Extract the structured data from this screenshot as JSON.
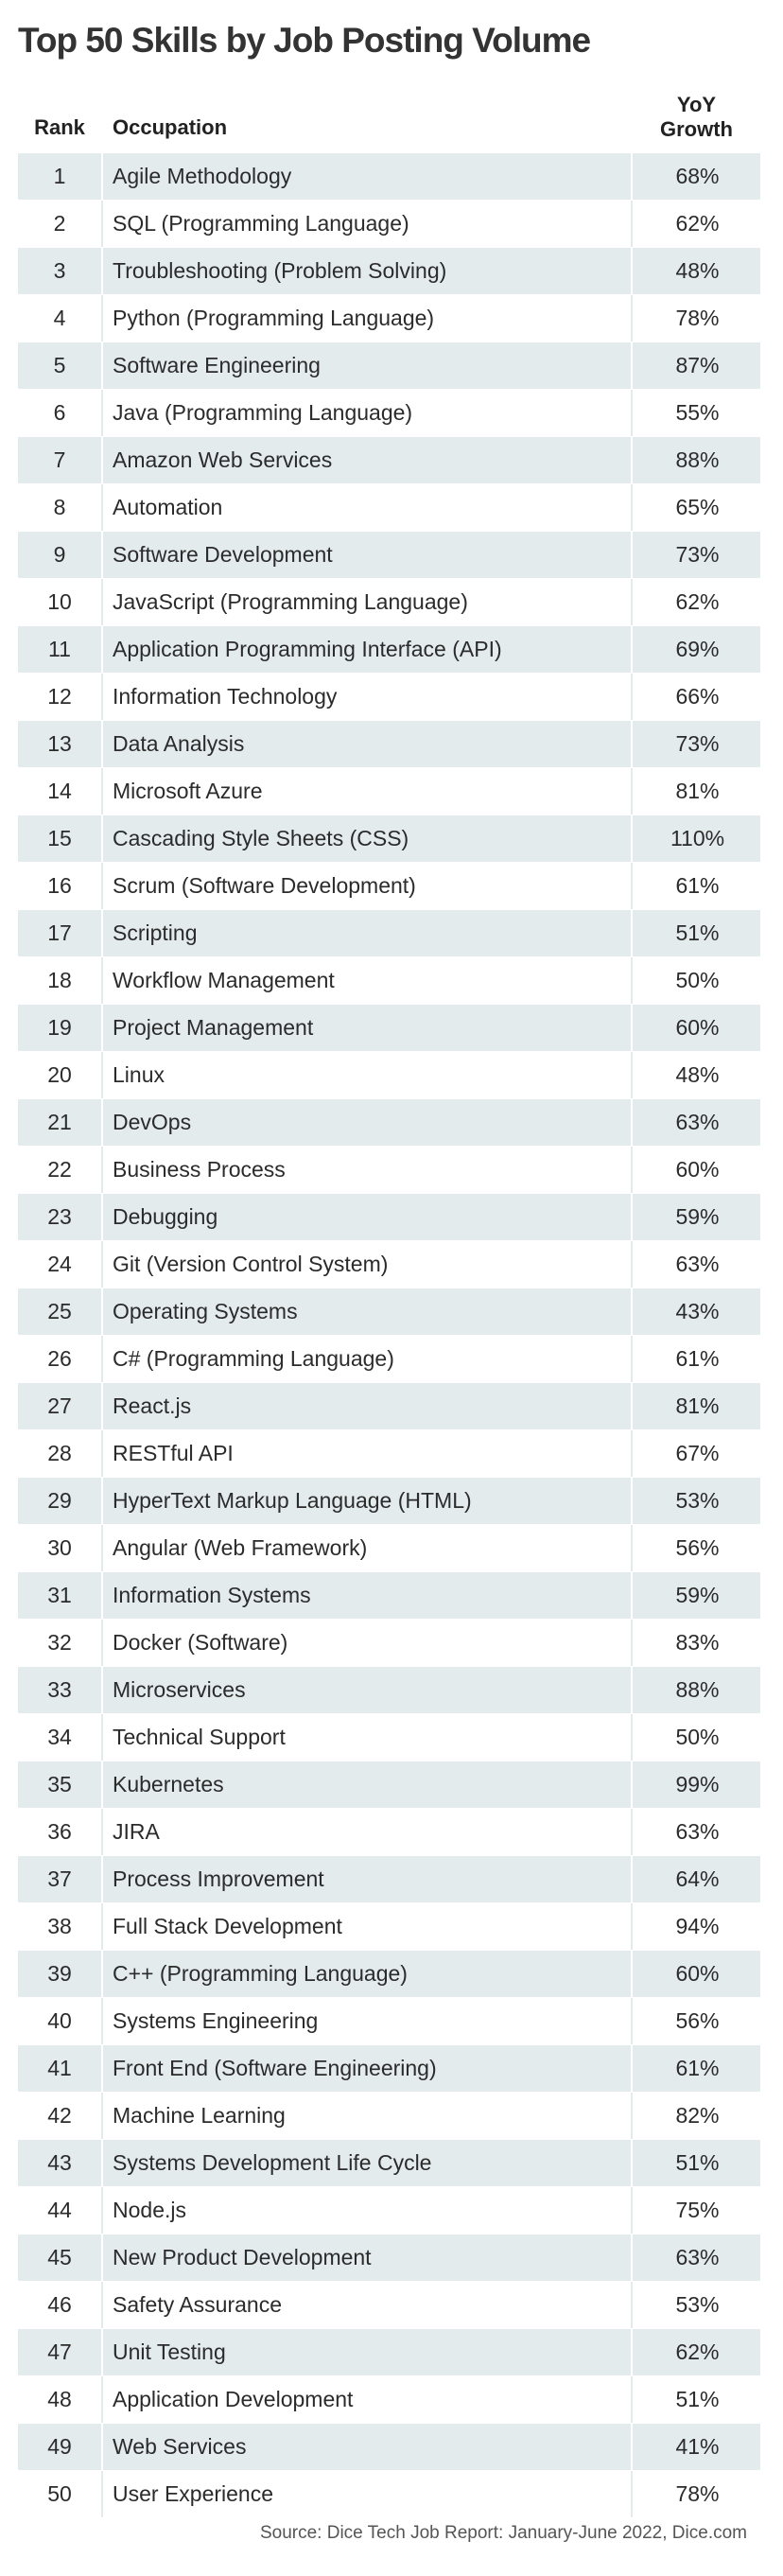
{
  "title": "Top 50 Skills by Job Posting Volume",
  "columns": {
    "rank": "Rank",
    "occupation": "Occupation",
    "growth_line1": "YoY",
    "growth_line2": "Growth"
  },
  "source": "Source: Dice Tech Job Report: January-June 2022, Dice.com",
  "colors": {
    "shaded_row": "#e4ebed",
    "title": "#333333"
  },
  "chart_data": {
    "type": "table",
    "title": "Top 50 Skills by Job Posting Volume",
    "columns": [
      "Rank",
      "Occupation",
      "YoY Growth"
    ],
    "rows": [
      {
        "rank": "1",
        "occupation": "Agile Methodology",
        "growth": "68%"
      },
      {
        "rank": "2",
        "occupation": "SQL (Programming Language)",
        "growth": "62%"
      },
      {
        "rank": "3",
        "occupation": "Troubleshooting (Problem Solving)",
        "growth": "48%"
      },
      {
        "rank": "4",
        "occupation": "Python (Programming Language)",
        "growth": "78%"
      },
      {
        "rank": "5",
        "occupation": "Software Engineering",
        "growth": "87%"
      },
      {
        "rank": "6",
        "occupation": "Java (Programming Language)",
        "growth": "55%"
      },
      {
        "rank": "7",
        "occupation": "Amazon Web Services",
        "growth": "88%"
      },
      {
        "rank": "8",
        "occupation": "Automation",
        "growth": "65%"
      },
      {
        "rank": "9",
        "occupation": "Software Development",
        "growth": "73%"
      },
      {
        "rank": "10",
        "occupation": "JavaScript (Programming Language)",
        "growth": "62%"
      },
      {
        "rank": "11",
        "occupation": "Application Programming Interface (API)",
        "growth": "69%"
      },
      {
        "rank": "12",
        "occupation": "Information Technology",
        "growth": "66%"
      },
      {
        "rank": "13",
        "occupation": "Data Analysis",
        "growth": "73%"
      },
      {
        "rank": "14",
        "occupation": "Microsoft Azure",
        "growth": "81%"
      },
      {
        "rank": "15",
        "occupation": "Cascading Style Sheets (CSS)",
        "growth": "110%"
      },
      {
        "rank": "16",
        "occupation": "Scrum (Software Development)",
        "growth": "61%"
      },
      {
        "rank": "17",
        "occupation": "Scripting",
        "growth": "51%"
      },
      {
        "rank": "18",
        "occupation": "Workflow Management",
        "growth": "50%"
      },
      {
        "rank": "19",
        "occupation": "Project Management",
        "growth": "60%"
      },
      {
        "rank": "20",
        "occupation": "Linux",
        "growth": "48%"
      },
      {
        "rank": "21",
        "occupation": "DevOps",
        "growth": "63%"
      },
      {
        "rank": "22",
        "occupation": "Business Process",
        "growth": "60%"
      },
      {
        "rank": "23",
        "occupation": "Debugging",
        "growth": "59%"
      },
      {
        "rank": "24",
        "occupation": "Git (Version Control System)",
        "growth": "63%"
      },
      {
        "rank": "25",
        "occupation": "Operating Systems",
        "growth": "43%"
      },
      {
        "rank": "26",
        "occupation": "C# (Programming Language)",
        "growth": "61%"
      },
      {
        "rank": "27",
        "occupation": "React.js",
        "growth": "81%"
      },
      {
        "rank": "28",
        "occupation": "RESTful API",
        "growth": "67%"
      },
      {
        "rank": "29",
        "occupation": "HyperText Markup Language (HTML)",
        "growth": "53%"
      },
      {
        "rank": "30",
        "occupation": "Angular (Web Framework)",
        "growth": "56%"
      },
      {
        "rank": "31",
        "occupation": "Information Systems",
        "growth": "59%"
      },
      {
        "rank": "32",
        "occupation": "Docker (Software)",
        "growth": "83%"
      },
      {
        "rank": "33",
        "occupation": "Microservices",
        "growth": "88%"
      },
      {
        "rank": "34",
        "occupation": "Technical Support",
        "growth": "50%"
      },
      {
        "rank": "35",
        "occupation": "Kubernetes",
        "growth": "99%"
      },
      {
        "rank": "36",
        "occupation": "JIRA",
        "growth": "63%"
      },
      {
        "rank": "37",
        "occupation": "Process Improvement",
        "growth": "64%"
      },
      {
        "rank": "38",
        "occupation": "Full Stack Development",
        "growth": "94%"
      },
      {
        "rank": "39",
        "occupation": "C++ (Programming Language)",
        "growth": "60%"
      },
      {
        "rank": "40",
        "occupation": "Systems Engineering",
        "growth": "56%"
      },
      {
        "rank": "41",
        "occupation": "Front End (Software Engineering)",
        "growth": "61%"
      },
      {
        "rank": "42",
        "occupation": "Machine Learning",
        "growth": "82%"
      },
      {
        "rank": "43",
        "occupation": "Systems Development Life Cycle",
        "growth": "51%"
      },
      {
        "rank": "44",
        "occupation": "Node.js",
        "growth": "75%"
      },
      {
        "rank": "45",
        "occupation": "New Product Development",
        "growth": "63%"
      },
      {
        "rank": "46",
        "occupation": "Safety Assurance",
        "growth": "53%"
      },
      {
        "rank": "47",
        "occupation": "Unit Testing",
        "growth": "62%"
      },
      {
        "rank": "48",
        "occupation": "Application Development",
        "growth": "51%"
      },
      {
        "rank": "49",
        "occupation": "Web Services",
        "growth": "41%"
      },
      {
        "rank": "50",
        "occupation": "User Experience",
        "growth": "78%"
      }
    ]
  }
}
